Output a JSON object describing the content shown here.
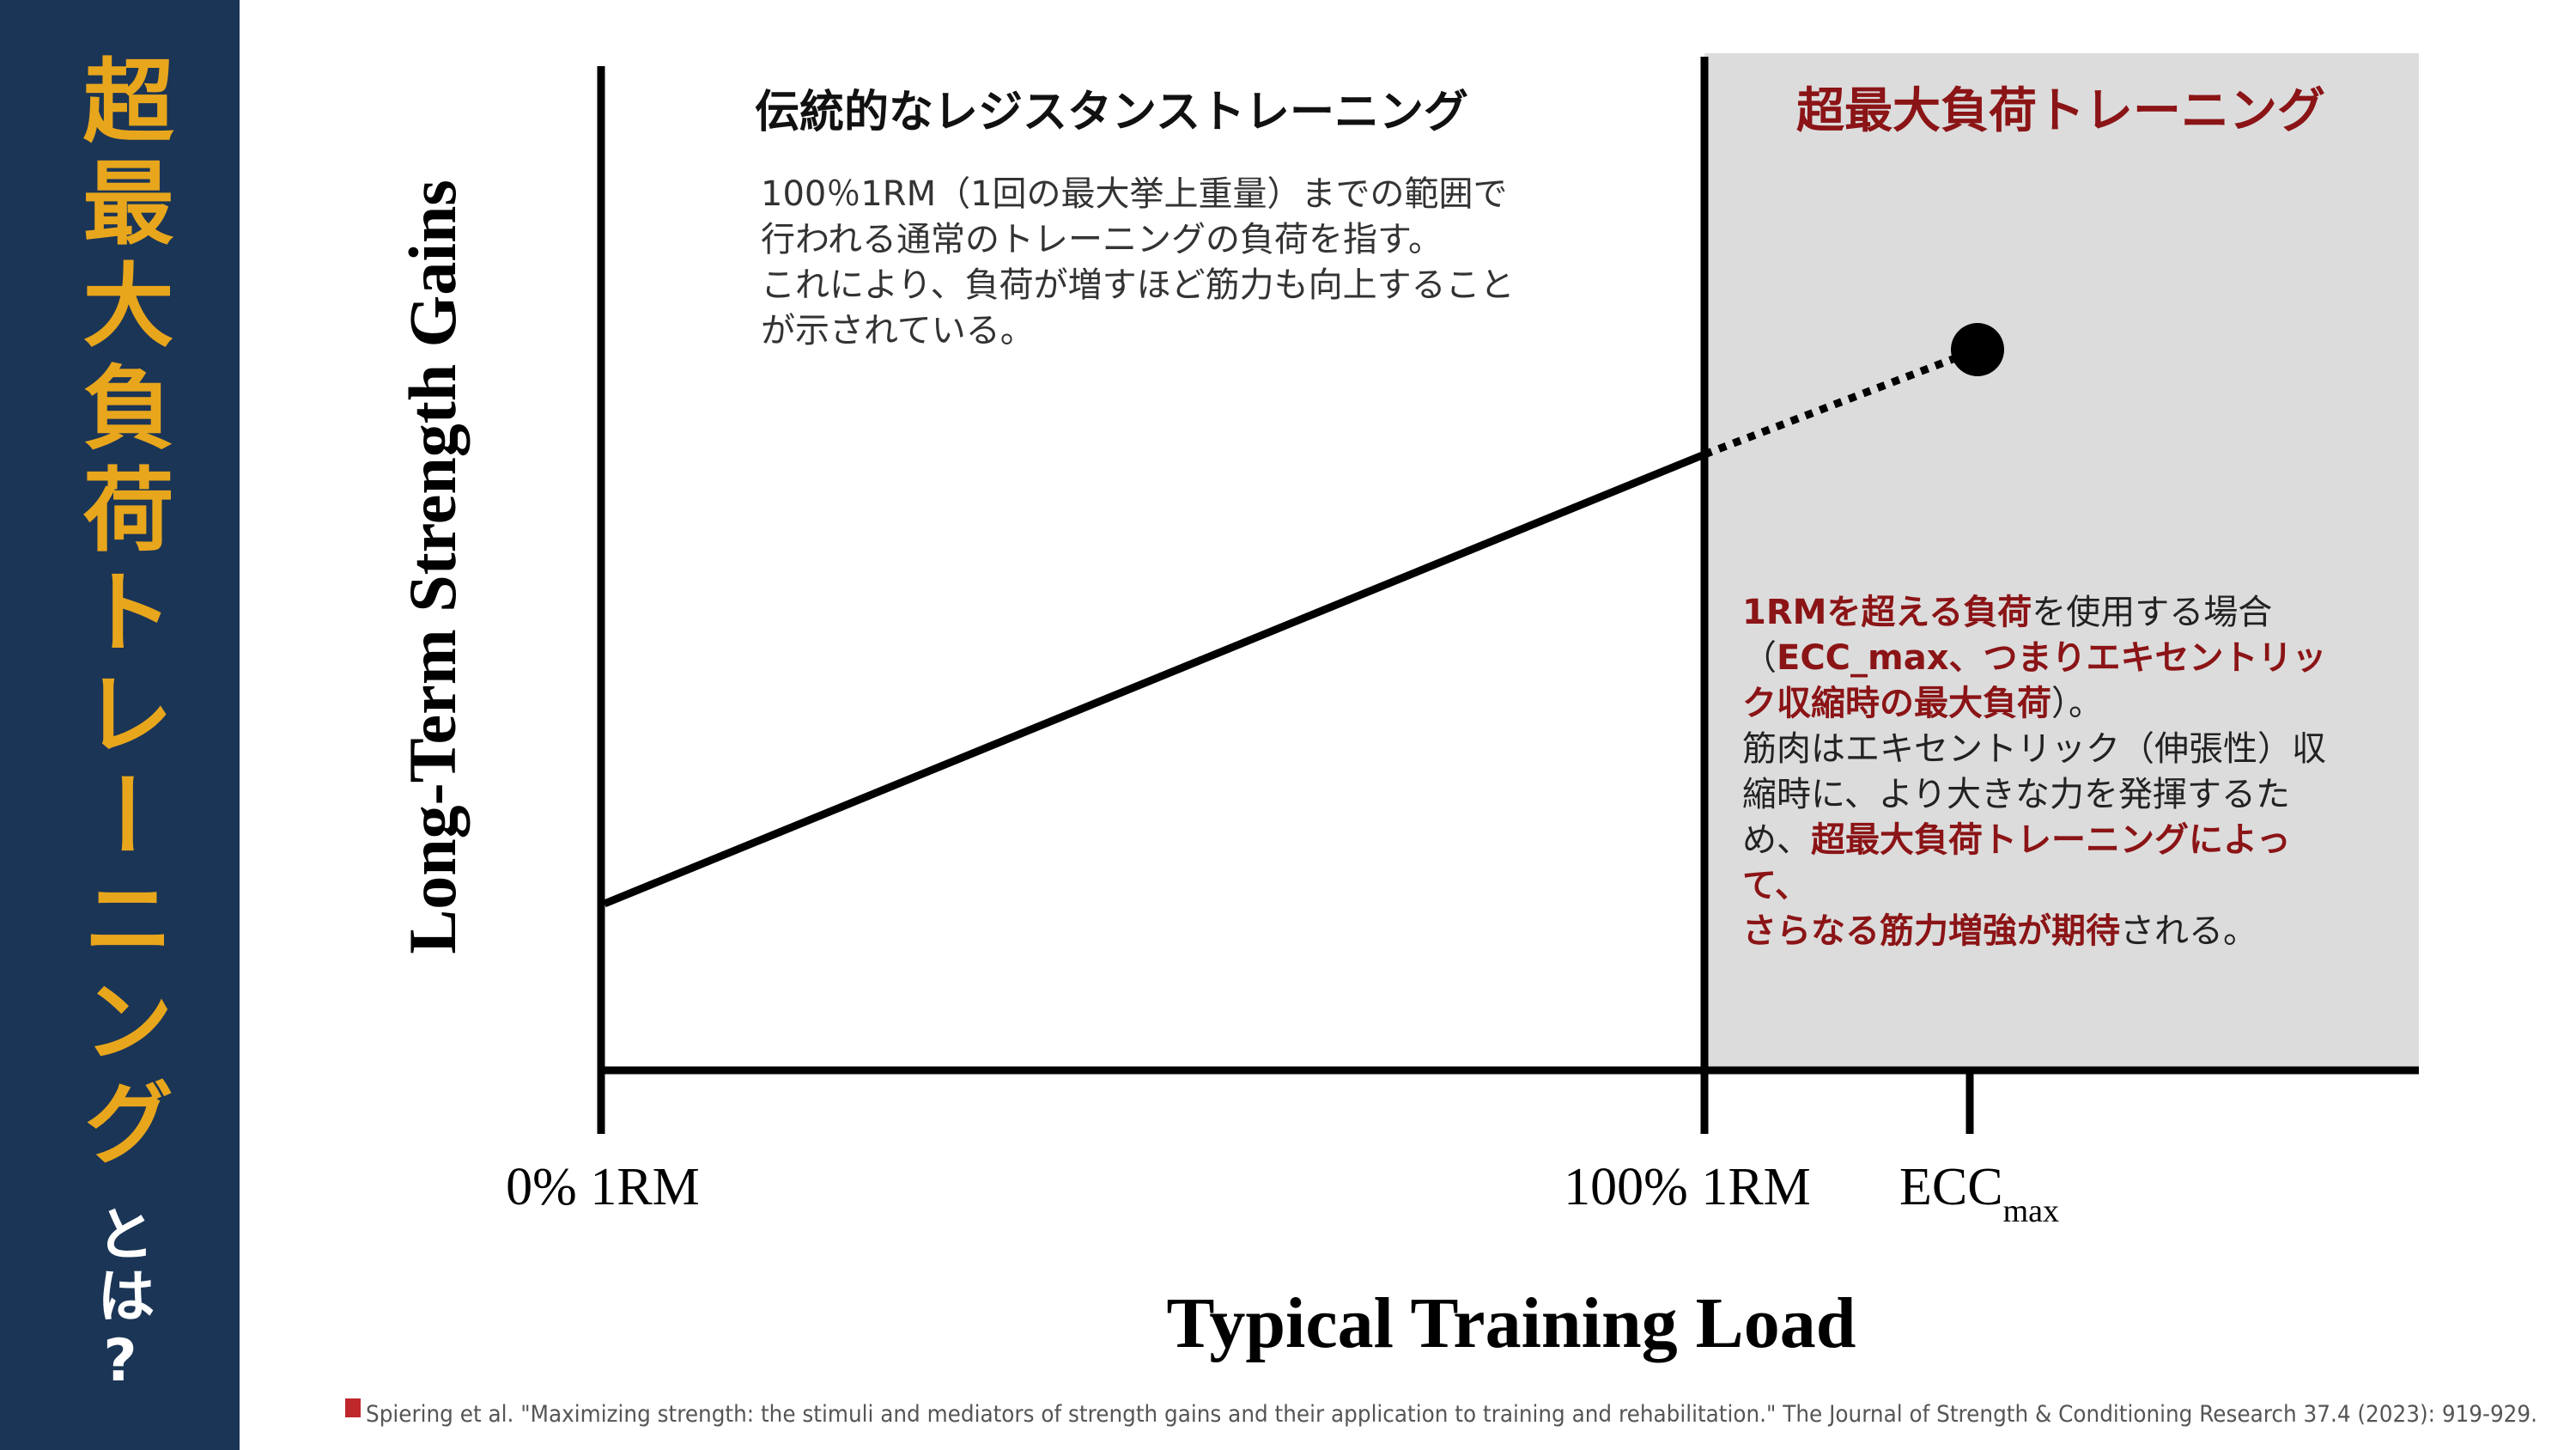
{
  "sidebar": {
    "title_main": "超最大負荷トレーニング",
    "title_sub": "とは?"
  },
  "diagram": {
    "y_axis_label": "Long-Term Strength Gains",
    "x_axis_label": "Typical Training Load",
    "x_ticks": [
      {
        "label": "0% 1RM"
      },
      {
        "label": "100% 1RM"
      },
      {
        "label": "ECC",
        "subscript": "max"
      }
    ],
    "left_panel": {
      "heading": "伝統的なレジスタンストレーニング",
      "body": [
        "100％1RM（1回の最大挙上重量）までの範囲で",
        "行われる通常のトレーニングの負荷を指す。",
        "これにより、負荷が増すほど筋力も向上すること",
        "が示されている。"
      ]
    },
    "right_panel": {
      "heading": "超最大負荷トレーニング",
      "body": [
        [
          {
            "text": "1RMを超える負荷",
            "emphasis": true
          },
          {
            "text": "を使用する場合",
            "emphasis": false
          }
        ],
        [
          {
            "text": "（",
            "emphasis": false
          },
          {
            "text": "ECC_max、つまりエキセントリッ",
            "emphasis": true
          }
        ],
        [
          {
            "text": "ク収縮時の最大負荷",
            "emphasis": true
          },
          {
            "text": "）。",
            "emphasis": false
          }
        ],
        [
          {
            "text": "筋肉はエキセントリック（伸張性）収",
            "emphasis": false
          }
        ],
        [
          {
            "text": "縮時に、より大きな力を発揮するた",
            "emphasis": false
          }
        ],
        [
          {
            "text": "め、",
            "emphasis": false
          },
          {
            "text": "超最大負荷トレーニングによっ",
            "emphasis": true
          }
        ],
        [
          {
            "text": "て、",
            "emphasis": true
          }
        ],
        [
          {
            "text": "さらなる筋力増強が期待",
            "emphasis": true
          },
          {
            "text": "される。",
            "emphasis": false
          }
        ]
      ]
    }
  },
  "citation": "Spiering et al. \"Maximizing strength: the stimuli and mediators of strength gains and their application to training and rehabilitation.\" The Journal of Strength & Conditioning Research 37.4 (2023): 919-929."
}
